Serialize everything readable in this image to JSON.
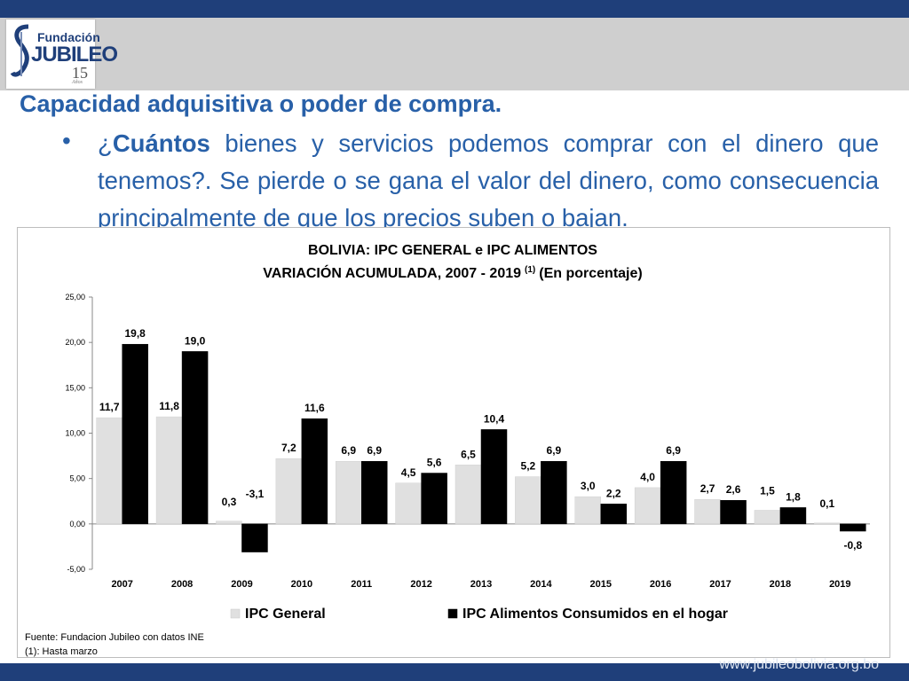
{
  "header": {
    "logo": {
      "word1": "Fundación",
      "word2": "JUBILEO",
      "years": "15",
      "sub": "Años",
      "icon": "fundacion-jubileo-logo"
    }
  },
  "slide": {
    "heading": "Capacidad adquisitiva o poder de compra.",
    "bullet": {
      "symbol": "•",
      "prefix": "¿",
      "bold": "Cuántos",
      "text": " bienes y servicios podemos comprar con el dinero que tenemos?. Se pierde o se gana el valor del dinero, como consecuencia principalmente de que los precios suben o bajan."
    }
  },
  "footer": {
    "website": "www.jubileobolivia.org.bo"
  },
  "colors": {
    "band": "#1f3f7a",
    "text": "#2860a8",
    "ipc_general": "#e0e0e0",
    "ipc_alimentos": "#000000"
  },
  "chart_data": {
    "type": "bar",
    "title": "BOLIVIA: IPC GENERAL e IPC ALIMENTOS",
    "subtitle_pre": "VARIACIÓN ACUMULADA, 2007 -  2019",
    "subtitle_sup": "(1)",
    "subtitle_post": "(En porcentaje)",
    "categories": [
      "2007",
      "2008",
      "2009",
      "2010",
      "2011",
      "2012",
      "2013",
      "2014",
      "2015",
      "2016",
      "2017",
      "2018",
      "2019"
    ],
    "series": [
      {
        "name": "IPC General",
        "values": [
          11.7,
          11.8,
          0.3,
          7.2,
          6.9,
          4.5,
          6.5,
          5.2,
          3.0,
          4.0,
          2.7,
          1.5,
          0.1
        ],
        "labels": [
          "11,7",
          "11,8",
          "0,3",
          "7,2",
          "6,9",
          "4,5",
          "6,5",
          "5,2",
          "3,0",
          "4,0",
          "2,7",
          "1,5",
          "0,1"
        ],
        "color": "#e0e0e0"
      },
      {
        "name": "IPC  Alimentos Consumidos en el hogar",
        "values": [
          19.8,
          19.0,
          -3.1,
          11.6,
          6.9,
          5.6,
          10.4,
          6.9,
          2.2,
          6.9,
          2.6,
          1.8,
          -0.8
        ],
        "labels": [
          "19,8",
          "19,0",
          "-3,1",
          "11,6",
          "6,9",
          "5,6",
          "10,4",
          "6,9",
          "2,2",
          "6,9",
          "2,6",
          "1,8",
          "-0,8"
        ],
        "color": "#000000"
      }
    ],
    "ylim": [
      -5,
      25
    ],
    "yticks": [
      25,
      20,
      15,
      10,
      5,
      0,
      -5
    ],
    "ytick_labels": [
      "25,00",
      "20,00",
      "15,00",
      "10,00",
      "5,00",
      "0,00",
      "-5,00"
    ],
    "legend_position": "bottom",
    "grid": false,
    "source_notes": [
      "Fuente: Fundacion Jubileo con datos INE",
      "(1): Hasta marzo"
    ]
  }
}
